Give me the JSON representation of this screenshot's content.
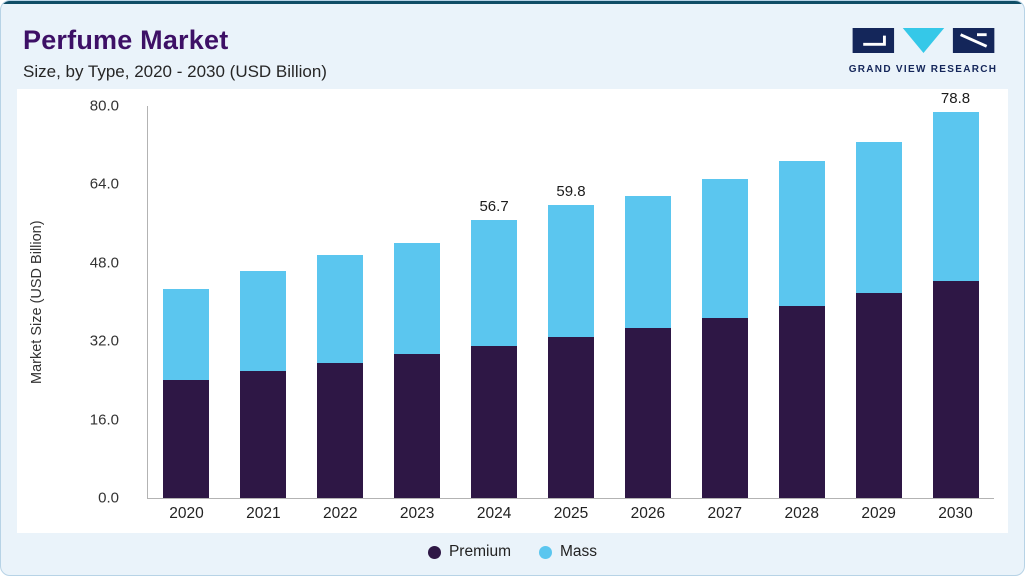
{
  "header": {
    "title": "Perfume Market",
    "subtitle": "Size, by Type, 2020 - 2030 (USD Billion)"
  },
  "logo": {
    "text": "GRAND VIEW RESEARCH",
    "navy": "#14265a",
    "cyan": "#35c8e8"
  },
  "chart_data": {
    "type": "bar",
    "stacked": true,
    "title": "Perfume Market Size, by Type, 2020 - 2030 (USD Billion)",
    "categories": [
      "2020",
      "2021",
      "2022",
      "2023",
      "2024",
      "2025",
      "2026",
      "2027",
      "2028",
      "2029",
      "2030"
    ],
    "series": [
      {
        "name": "Premium",
        "color": "#2e1745",
        "values": [
          24.0,
          25.9,
          27.6,
          29.3,
          31.0,
          32.8,
          34.6,
          36.8,
          39.1,
          41.8,
          44.3
        ]
      },
      {
        "name": "Mass",
        "color": "#5bc6ef",
        "values": [
          18.6,
          20.5,
          21.9,
          22.8,
          25.7,
          27.0,
          27.1,
          28.4,
          29.7,
          30.8,
          34.5
        ]
      }
    ],
    "totals": [
      42.6,
      46.4,
      49.5,
      52.1,
      56.7,
      59.8,
      61.7,
      65.2,
      68.8,
      72.6,
      78.8
    ],
    "bar_labels": [
      "",
      "",
      "",
      "",
      "56.7",
      "59.8",
      "",
      "",
      "",
      "",
      "78.8"
    ],
    "ylabel": "Market Size (USD Billion)",
    "xlabel": "",
    "ylim": [
      0,
      80
    ],
    "yticks": [
      0,
      16,
      32,
      48,
      64,
      80
    ],
    "ytick_labels": [
      "0.0",
      "16.0",
      "32.0",
      "48.0",
      "64.0",
      "80.0"
    ],
    "grid": false,
    "legend": [
      "Premium",
      "Mass"
    ],
    "legend_position": "bottom"
  }
}
